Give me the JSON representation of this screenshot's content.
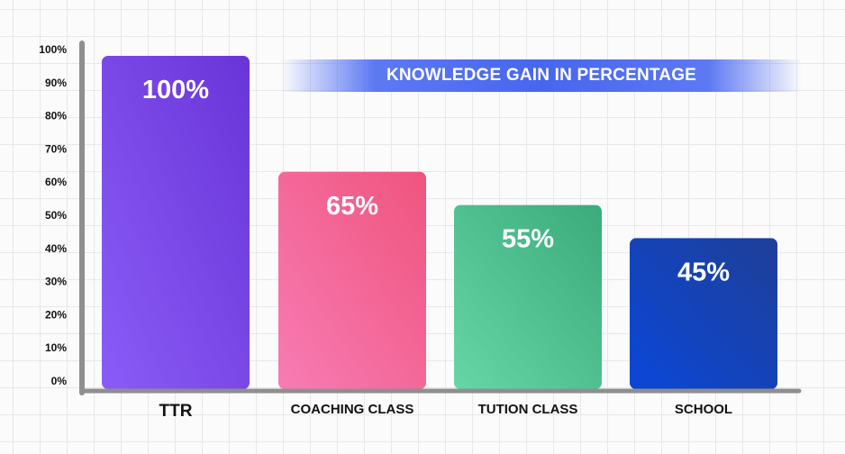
{
  "chart_data": {
    "type": "bar",
    "title": "KNOWLEDGE GAIN IN PERCENTAGE",
    "categories": [
      "TTR",
      "COACHING CLASS",
      "TUTION CLASS",
      "SCHOOL"
    ],
    "values": [
      100,
      65,
      55,
      45
    ],
    "value_labels": [
      "100%",
      "65%",
      "55%",
      "45%"
    ],
    "y_ticks": [
      "0%",
      "10%",
      "20%",
      "30%",
      "40%",
      "50%",
      "60%",
      "70%",
      "80%",
      "90%",
      "100%"
    ],
    "ylim": [
      0,
      100
    ],
    "grid": true,
    "bar_colors": [
      [
        "#8a5cf6",
        "#6a34d8"
      ],
      [
        "#f77cb4",
        "#f0547e"
      ],
      [
        "#66d6a6",
        "#3bab7c"
      ],
      [
        "#0a47d8",
        "#1f3f98"
      ]
    ],
    "axis_color": "#8f8f8f"
  }
}
